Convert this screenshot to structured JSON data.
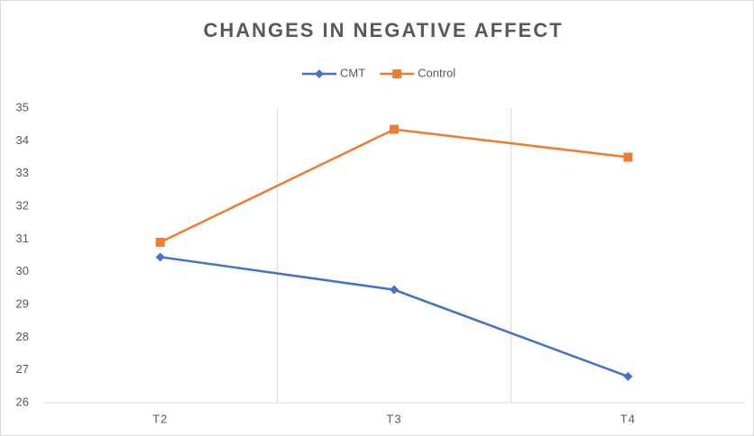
{
  "chart_data": {
    "type": "line",
    "title": "CHANGES IN NEGATIVE AFFECT",
    "categories": [
      "T2",
      "T3",
      "T4"
    ],
    "series": [
      {
        "name": "CMT",
        "color": "#4472c4",
        "marker": "diamond",
        "values": [
          30.45,
          29.45,
          26.8
        ]
      },
      {
        "name": "Control",
        "color": "#ed7d31",
        "marker": "square",
        "values": [
          30.9,
          34.35,
          33.5
        ]
      }
    ],
    "ylim": [
      26,
      35
    ],
    "yticks": [
      26,
      27,
      28,
      29,
      30,
      31,
      32,
      33,
      34,
      35
    ],
    "grid": false,
    "legend": "top"
  }
}
